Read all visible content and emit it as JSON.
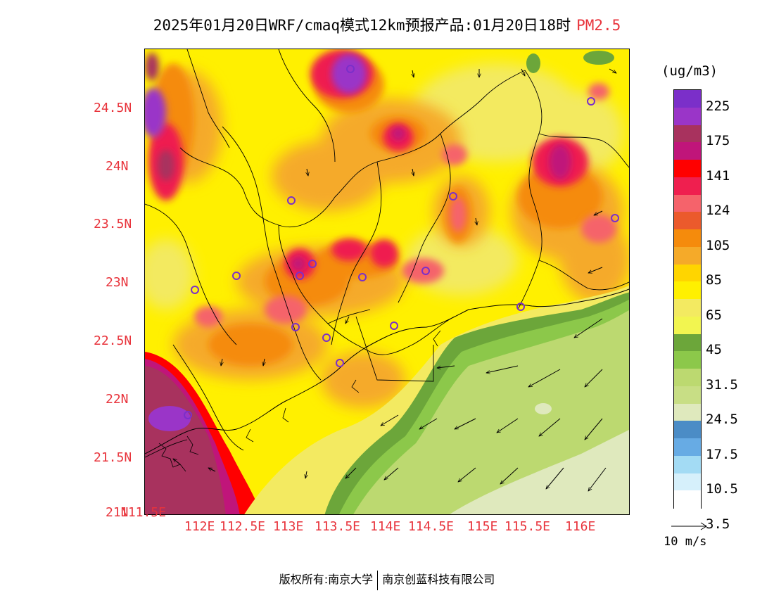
{
  "title": {
    "main": "2025年01月20日WRF/cmaq模式12km预报产品:01月20日18时",
    "pollutant": "PM2.5"
  },
  "axes": {
    "x_ticks": [
      "111.5E",
      "112E",
      "112.5E",
      "113E",
      "113.5E",
      "114E",
      "114.5E",
      "115E",
      "115.5E",
      "116E"
    ],
    "y_ticks": [
      "21N",
      "21.5N",
      "22N",
      "22.5N",
      "23N",
      "23.5N",
      "24N",
      "24.5N"
    ]
  },
  "colorbar": {
    "unit": "(ug/m3)",
    "colors": [
      "#7b2fc9",
      "#9a35c8",
      "#a8325e",
      "#c0157a",
      "#ff0000",
      "#ef1f4f",
      "#f5636b",
      "#eb5a2c",
      "#f58b0c",
      "#f5aa29",
      "#ffd500",
      "#fff000",
      "#f3ea61",
      "#f2f550",
      "#6ca63a",
      "#8cc84a",
      "#bcd970",
      "#c8de85",
      "#dfe9bd",
      "#4b8cc6",
      "#67abe4",
      "#a3dbf4",
      "#d6f0fb",
      "#ffffff"
    ],
    "labels": [
      "225",
      "175",
      "141",
      "124",
      "105",
      "85",
      "65",
      "45",
      "31.5",
      "24.5",
      "17.5",
      "10.5",
      "3.5"
    ]
  },
  "vector_key": {
    "label": "10 m/s"
  },
  "footer": {
    "left": "版权所有:南京大学",
    "right": "南京创蓝科技有限公司"
  }
}
